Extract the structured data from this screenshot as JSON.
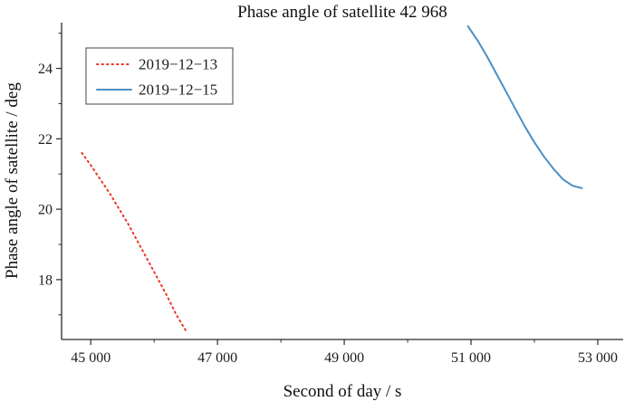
{
  "chart_data": {
    "type": "line",
    "title": "Phase angle of satellite 42 968",
    "xlabel": "Second of day / s",
    "ylabel": "Phase angle of satellite / deg",
    "xlim": [
      44540,
      53400
    ],
    "ylim": [
      16.3,
      25.3
    ],
    "grid": false,
    "legend_position": "upper-left",
    "x_ticks": [
      {
        "value": 45000,
        "label": "45 000"
      },
      {
        "value": 47000,
        "label": "47 000"
      },
      {
        "value": 49000,
        "label": "49 000"
      },
      {
        "value": 51000,
        "label": "51 000"
      },
      {
        "value": 53000,
        "label": "53 000"
      }
    ],
    "x_minor_ticks": [
      46000,
      48000,
      50000,
      52000
    ],
    "y_ticks": [
      {
        "value": 18,
        "label": "18"
      },
      {
        "value": 20,
        "label": "20"
      },
      {
        "value": 22,
        "label": "22"
      },
      {
        "value": 24,
        "label": "24"
      }
    ],
    "y_minor_ticks": [
      17,
      19,
      21,
      23,
      25
    ],
    "colors": {
      "spine": "#2b2b2b",
      "series_red": "#e8382a",
      "series_blue": "#4a90c6"
    },
    "series": [
      {
        "name": "2019−12−13",
        "color": "#e8382a",
        "style": "dotted",
        "points": [
          [
            44860,
            21.6
          ],
          [
            45000,
            21.25
          ],
          [
            45150,
            20.85
          ],
          [
            45300,
            20.45
          ],
          [
            45450,
            20.0
          ],
          [
            45600,
            19.55
          ],
          [
            45750,
            19.05
          ],
          [
            45900,
            18.55
          ],
          [
            46050,
            18.05
          ],
          [
            46200,
            17.55
          ],
          [
            46350,
            17.0
          ],
          [
            46500,
            16.55
          ]
        ]
      },
      {
        "name": "2019−12−15",
        "color": "#4a90c6",
        "style": "solid",
        "points": [
          [
            50950,
            25.2
          ],
          [
            51100,
            24.8
          ],
          [
            51250,
            24.35
          ],
          [
            51400,
            23.85
          ],
          [
            51550,
            23.35
          ],
          [
            51700,
            22.85
          ],
          [
            51850,
            22.35
          ],
          [
            52000,
            21.9
          ],
          [
            52150,
            21.5
          ],
          [
            52300,
            21.15
          ],
          [
            52450,
            20.85
          ],
          [
            52600,
            20.67
          ],
          [
            52750,
            20.6
          ]
        ]
      }
    ]
  }
}
